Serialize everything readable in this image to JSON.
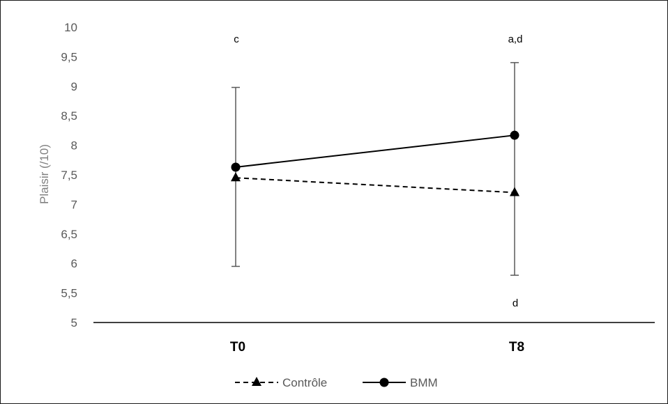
{
  "chart_data": {
    "type": "line",
    "categories": [
      "T0",
      "T8"
    ],
    "ylabel": "Plaisir (/10)",
    "ylim": [
      5,
      10
    ],
    "yticks": [
      "5",
      "5,5",
      "6",
      "6,5",
      "7",
      "7,5",
      "8",
      "8,5",
      "9",
      "9,5",
      "10"
    ],
    "series": [
      {
        "name": "Contrôle",
        "values": [
          7.45,
          7.2
        ],
        "marker": "triangle",
        "line_style": "dashed",
        "color": "#000000"
      },
      {
        "name": "BMM",
        "values": [
          7.63,
          8.17
        ],
        "marker": "circle",
        "line_style": "solid",
        "color": "#000000"
      }
    ],
    "error_bars": [
      {
        "category": "T0",
        "low": 5.95,
        "high": 8.98
      },
      {
        "category": "T8",
        "low": 5.8,
        "high": 9.4
      }
    ],
    "annotations": [
      {
        "category": "T0",
        "text": "c",
        "y": 9.8
      },
      {
        "category": "T8",
        "text": "a,d",
        "y": 9.8
      },
      {
        "category": "T8",
        "text": "d",
        "y": 5.33
      }
    ],
    "grid": false,
    "legend_position": "bottom"
  }
}
